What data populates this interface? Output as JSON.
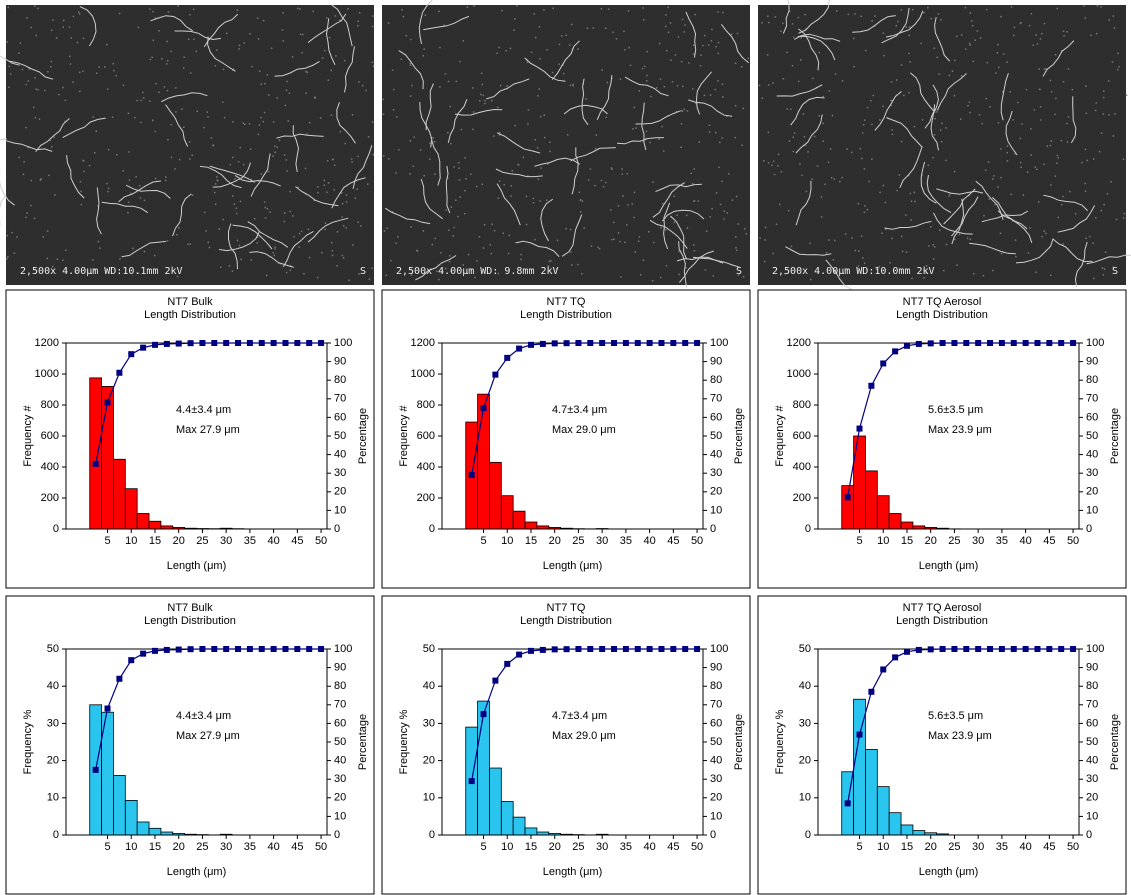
{
  "micrographs": [
    {
      "caption": "2,500x 4.00μm WD:10.1mm 2kV",
      "mark": "S"
    },
    {
      "caption": "2,500x 4.00μm WD: 9.8mm 2kV",
      "mark": "S"
    },
    {
      "caption": "2,500x 4.00μm WD:10.0mm 2kV",
      "mark": "S"
    }
  ],
  "chart_data": [
    {
      "type": "histogram-line",
      "title": "NT7 Bulk",
      "subtitle": "Length Distribution",
      "annotations": [
        "4.4±3.4 μm",
        "Max 27.9 μm"
      ],
      "xlabel": "Length (μm)",
      "ylabel": "Frequency #",
      "y2label": "Percentage",
      "bins": [
        1.25,
        3.75,
        6.25,
        8.75,
        11.25,
        13.75,
        16.25,
        18.75,
        21.25,
        23.75,
        26.25,
        28.75,
        31.25,
        33.75,
        36.25,
        38.75,
        41.25,
        43.75,
        46.25,
        48.75,
        51.25
      ],
      "xlim": [
        -3.75,
        51.25
      ],
      "xticks": [
        5,
        10,
        15,
        20,
        25,
        30,
        35,
        40,
        45,
        50
      ],
      "ylim": [
        0,
        1200
      ],
      "yticks": [
        0,
        200,
        400,
        600,
        800,
        1000,
        1200
      ],
      "y2lim": [
        0,
        100
      ],
      "y2ticks": [
        0,
        10,
        20,
        30,
        40,
        50,
        60,
        70,
        80,
        90,
        100
      ],
      "series": [
        {
          "color": "#ff0000",
          "values": [
            975,
            920,
            450,
            260,
            100,
            50,
            20,
            10,
            5,
            3,
            2,
            5,
            2,
            0,
            0,
            0,
            0,
            0,
            0,
            0
          ]
        },
        {
          "color": "#000080",
          "axis": "y2",
          "x": [
            2.5,
            5,
            7.5,
            10,
            12.5,
            15,
            17.5,
            20,
            22.5,
            25,
            27.5,
            30,
            32.5,
            35,
            37.5,
            40,
            42.5,
            45,
            47.5,
            50
          ],
          "values": [
            35,
            68,
            84,
            94,
            97.5,
            99,
            99.5,
            99.7,
            99.9,
            100,
            100,
            100,
            100,
            100,
            100,
            100,
            100,
            100,
            100,
            100
          ]
        }
      ]
    },
    {
      "type": "histogram-line",
      "title": "NT7 TQ",
      "subtitle": "Length Distribution",
      "annotations": [
        "4.7±3.4 μm",
        "Max 29.0 μm"
      ],
      "xlabel": "Length (μm)",
      "ylabel": "Frequency #",
      "y2label": "Percentage",
      "bins": [
        1.25,
        3.75,
        6.25,
        8.75,
        11.25,
        13.75,
        16.25,
        18.75,
        21.25,
        23.75,
        26.25,
        28.75,
        31.25,
        33.75,
        36.25,
        38.75,
        41.25,
        43.75,
        46.25,
        48.75,
        51.25
      ],
      "xlim": [
        -3.75,
        51.25
      ],
      "xticks": [
        5,
        10,
        15,
        20,
        25,
        30,
        35,
        40,
        45,
        50
      ],
      "ylim": [
        0,
        1200
      ],
      "yticks": [
        0,
        200,
        400,
        600,
        800,
        1000,
        1200
      ],
      "y2lim": [
        0,
        100
      ],
      "y2ticks": [
        0,
        10,
        20,
        30,
        40,
        50,
        60,
        70,
        80,
        90,
        100
      ],
      "series": [
        {
          "color": "#ff0000",
          "values": [
            690,
            870,
            430,
            215,
            115,
            45,
            20,
            10,
            5,
            2,
            1,
            3,
            0,
            0,
            0,
            0,
            0,
            0,
            0,
            0
          ]
        },
        {
          "color": "#000080",
          "axis": "y2",
          "x": [
            2.5,
            5,
            7.5,
            10,
            12.5,
            15,
            17.5,
            20,
            22.5,
            25,
            27.5,
            30,
            32.5,
            35,
            37.5,
            40,
            42.5,
            45,
            47.5,
            50
          ],
          "values": [
            29,
            65,
            83,
            92,
            97,
            99,
            99.5,
            99.8,
            99.9,
            100,
            100,
            100,
            100,
            100,
            100,
            100,
            100,
            100,
            100,
            100
          ]
        }
      ]
    },
    {
      "type": "histogram-line",
      "title": "NT7 TQ Aerosol",
      "subtitle": "Length Distribution",
      "annotations": [
        "5.6±3.5 μm",
        "Max 23.9 μm"
      ],
      "xlabel": "Length (μm)",
      "ylabel": "Frequency #",
      "y2label": "Percentage",
      "bins": [
        1.25,
        3.75,
        6.25,
        8.75,
        11.25,
        13.75,
        16.25,
        18.75,
        21.25,
        23.75,
        26.25,
        28.75,
        31.25,
        33.75,
        36.25,
        38.75,
        41.25,
        43.75,
        46.25,
        48.75,
        51.25
      ],
      "xlim": [
        -3.75,
        51.25
      ],
      "xticks": [
        5,
        10,
        15,
        20,
        25,
        30,
        35,
        40,
        45,
        50
      ],
      "ylim": [
        0,
        1200
      ],
      "yticks": [
        0,
        200,
        400,
        600,
        800,
        1000,
        1200
      ],
      "y2lim": [
        0,
        100
      ],
      "y2ticks": [
        0,
        10,
        20,
        30,
        40,
        50,
        60,
        70,
        80,
        90,
        100
      ],
      "series": [
        {
          "color": "#ff0000",
          "values": [
            280,
            600,
            375,
            215,
            100,
            45,
            20,
            10,
            5,
            1,
            0,
            0,
            0,
            0,
            0,
            0,
            0,
            0,
            0,
            0
          ]
        },
        {
          "color": "#000080",
          "axis": "y2",
          "x": [
            2.5,
            5,
            7.5,
            10,
            12.5,
            15,
            17.5,
            20,
            22.5,
            25,
            27.5,
            30,
            32.5,
            35,
            37.5,
            40,
            42.5,
            45,
            47.5,
            50
          ],
          "values": [
            17,
            54,
            77,
            89,
            95.5,
            98.5,
            99.5,
            99.8,
            100,
            100,
            100,
            100,
            100,
            100,
            100,
            100,
            100,
            100,
            100,
            100
          ]
        }
      ]
    },
    {
      "type": "histogram-line",
      "title": "NT7 Bulk",
      "subtitle": "Length Distribution",
      "annotations": [
        "4.4±3.4 μm",
        "Max 27.9 μm"
      ],
      "xlabel": "Length (μm)",
      "ylabel": "Frequency %",
      "y2label": "Percentage",
      "bins": [
        1.25,
        3.75,
        6.25,
        8.75,
        11.25,
        13.75,
        16.25,
        18.75,
        21.25,
        23.75,
        26.25,
        28.75,
        31.25,
        33.75,
        36.25,
        38.75,
        41.25,
        43.75,
        46.25,
        48.75,
        51.25
      ],
      "xlim": [
        -3.75,
        51.25
      ],
      "xticks": [
        5,
        10,
        15,
        20,
        25,
        30,
        35,
        40,
        45,
        50
      ],
      "ylim": [
        0,
        50
      ],
      "yticks": [
        0,
        10,
        20,
        30,
        40,
        50
      ],
      "y2lim": [
        0,
        100
      ],
      "y2ticks": [
        0,
        10,
        20,
        30,
        40,
        50,
        60,
        70,
        80,
        90,
        100
      ],
      "series": [
        {
          "color": "#29c5ee",
          "values": [
            35,
            33,
            16,
            9.3,
            3.5,
            1.8,
            0.8,
            0.4,
            0.2,
            0.1,
            0,
            0.2,
            0,
            0,
            0,
            0,
            0,
            0,
            0,
            0
          ]
        },
        {
          "color": "#000080",
          "axis": "y2",
          "x": [
            2.5,
            5,
            7.5,
            10,
            12.5,
            15,
            17.5,
            20,
            22.5,
            25,
            27.5,
            30,
            32.5,
            35,
            37.5,
            40,
            42.5,
            45,
            47.5,
            50
          ],
          "values": [
            35,
            68,
            84,
            94,
            97.5,
            99,
            99.5,
            99.7,
            99.9,
            100,
            100,
            100,
            100,
            100,
            100,
            100,
            100,
            100,
            100,
            100
          ]
        }
      ]
    },
    {
      "type": "histogram-line",
      "title": "NT7 TQ",
      "subtitle": "Length Distribution",
      "annotations": [
        "4.7±3.4 μm",
        "Max 29.0 μm"
      ],
      "xlabel": "Length (μm)",
      "ylabel": "Frequency %",
      "y2label": "Percentage",
      "bins": [
        1.25,
        3.75,
        6.25,
        8.75,
        11.25,
        13.75,
        16.25,
        18.75,
        21.25,
        23.75,
        26.25,
        28.75,
        31.25,
        33.75,
        36.25,
        38.75,
        41.25,
        43.75,
        46.25,
        48.75,
        51.25
      ],
      "xlim": [
        -3.75,
        51.25
      ],
      "xticks": [
        5,
        10,
        15,
        20,
        25,
        30,
        35,
        40,
        45,
        50
      ],
      "ylim": [
        0,
        50
      ],
      "yticks": [
        0,
        10,
        20,
        30,
        40,
        50
      ],
      "y2lim": [
        0,
        100
      ],
      "y2ticks": [
        0,
        10,
        20,
        30,
        40,
        50,
        60,
        70,
        80,
        90,
        100
      ],
      "series": [
        {
          "color": "#29c5ee",
          "values": [
            29,
            36,
            18,
            9,
            4.8,
            1.9,
            0.8,
            0.4,
            0.2,
            0.1,
            0,
            0.2,
            0,
            0,
            0,
            0,
            0,
            0,
            0,
            0
          ]
        },
        {
          "color": "#000080",
          "axis": "y2",
          "x": [
            2.5,
            5,
            7.5,
            10,
            12.5,
            15,
            17.5,
            20,
            22.5,
            25,
            27.5,
            30,
            32.5,
            35,
            37.5,
            40,
            42.5,
            45,
            47.5,
            50
          ],
          "values": [
            29,
            65,
            83,
            92,
            97,
            99,
            99.5,
            99.8,
            99.9,
            100,
            100,
            100,
            100,
            100,
            100,
            100,
            100,
            100,
            100,
            100
          ]
        }
      ]
    },
    {
      "type": "histogram-line",
      "title": "NT7 TQ Aerosol",
      "subtitle": "Length Distribution",
      "annotations": [
        "5.6±3.5 μm",
        "Max 23.9 μm"
      ],
      "xlabel": "Length (μm)",
      "ylabel": "Frequency %",
      "y2label": "Percentage",
      "bins": [
        1.25,
        3.75,
        6.25,
        8.75,
        11.25,
        13.75,
        16.25,
        18.75,
        21.25,
        23.75,
        26.25,
        28.75,
        31.25,
        33.75,
        36.25,
        38.75,
        41.25,
        43.75,
        46.25,
        48.75,
        51.25
      ],
      "xlim": [
        -3.75,
        51.25
      ],
      "xticks": [
        5,
        10,
        15,
        20,
        25,
        30,
        35,
        40,
        45,
        50
      ],
      "ylim": [
        0,
        50
      ],
      "yticks": [
        0,
        10,
        20,
        30,
        40,
        50
      ],
      "y2lim": [
        0,
        100
      ],
      "y2ticks": [
        0,
        10,
        20,
        30,
        40,
        50,
        60,
        70,
        80,
        90,
        100
      ],
      "series": [
        {
          "color": "#29c5ee",
          "values": [
            17,
            36.5,
            23,
            13,
            6,
            2.7,
            1.2,
            0.6,
            0.3,
            0,
            0,
            0,
            0,
            0,
            0,
            0,
            0,
            0,
            0,
            0
          ]
        },
        {
          "color": "#000080",
          "axis": "y2",
          "x": [
            2.5,
            5,
            7.5,
            10,
            12.5,
            15,
            17.5,
            20,
            22.5,
            25,
            27.5,
            30,
            32.5,
            35,
            37.5,
            40,
            42.5,
            45,
            47.5,
            50
          ],
          "values": [
            17,
            54,
            77,
            89,
            95.5,
            98.5,
            99.5,
            99.8,
            100,
            100,
            100,
            100,
            100,
            100,
            100,
            100,
            100,
            100,
            100,
            100
          ]
        }
      ]
    }
  ]
}
